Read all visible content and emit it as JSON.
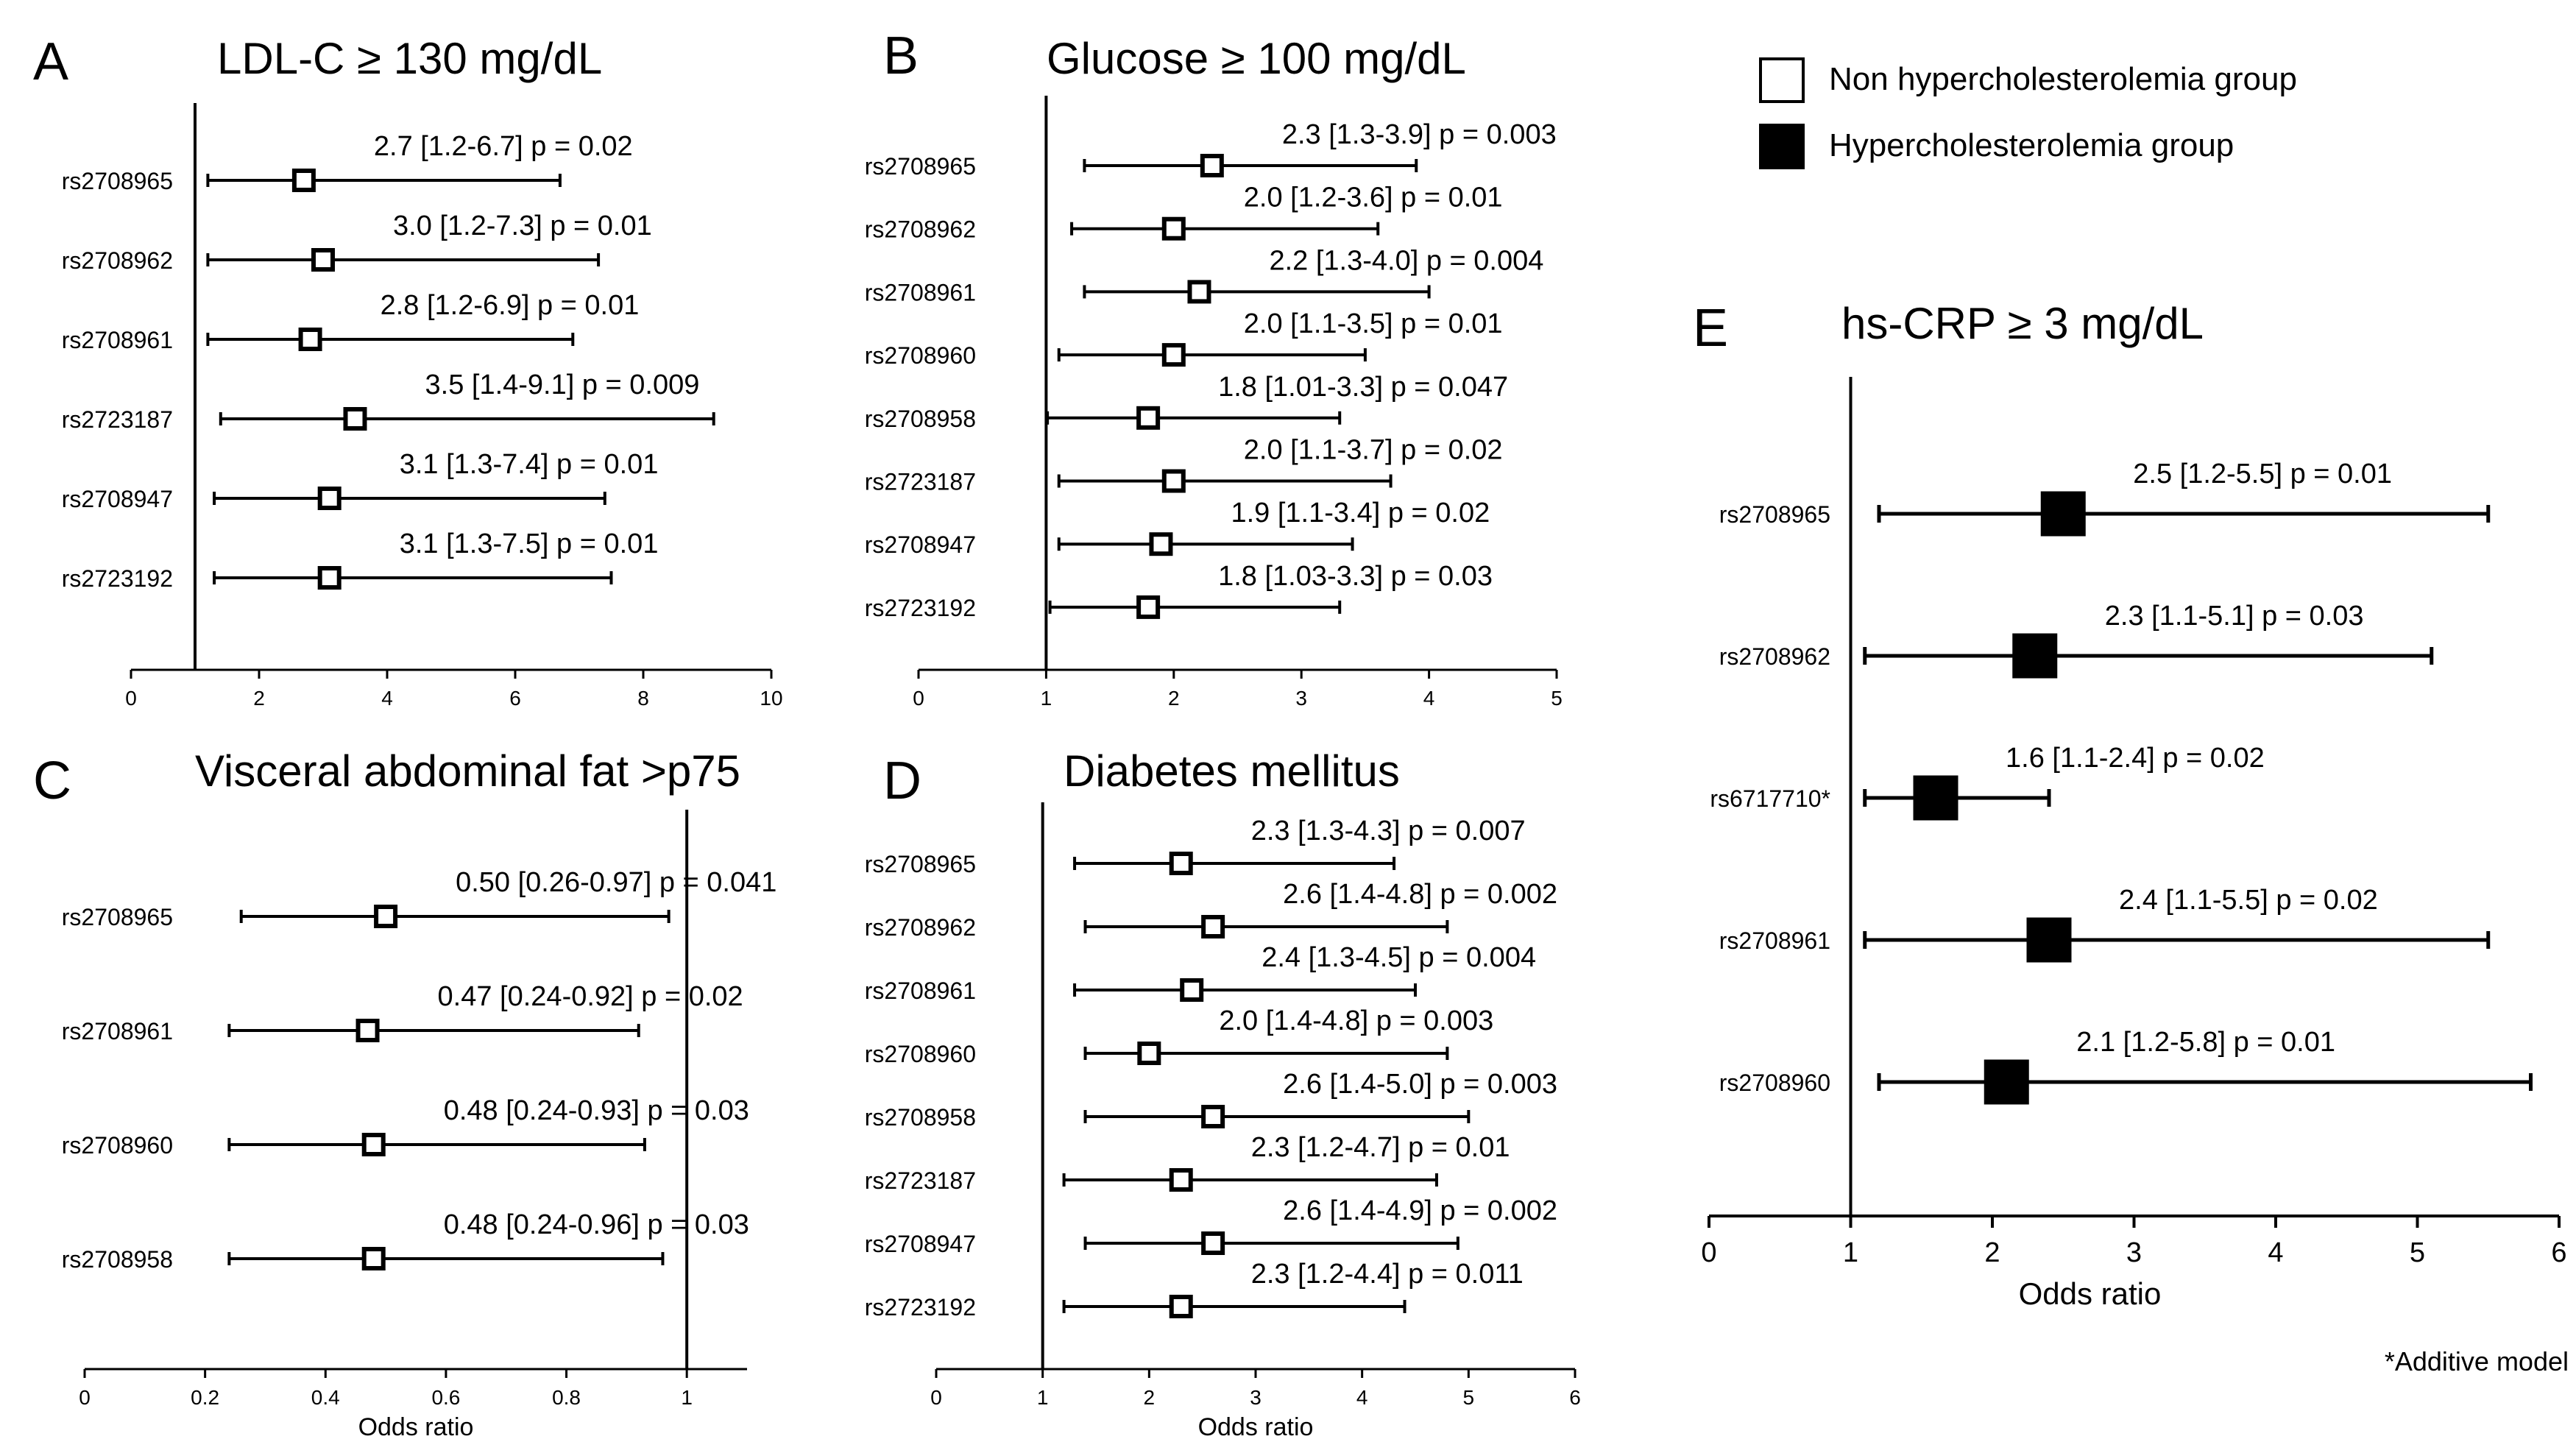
{
  "legend": {
    "open_label": "Non hypercholesterolemia group",
    "filled_label": "Hypercholesterolemia group"
  },
  "footnote": "*Additive model",
  "chart_data": [
    {
      "id": "A",
      "letter": "A",
      "type": "forest",
      "title": "LDL-C ≥ 130 mg/dL",
      "xlabel": "",
      "xlim": [
        0,
        10
      ],
      "ticks": [
        0,
        2,
        4,
        6,
        8,
        10
      ],
      "ref": 1,
      "marker": "open",
      "rows": [
        {
          "label": "rs2708965",
          "or": 2.7,
          "lo": 1.2,
          "hi": 6.7,
          "text": "2.7 [1.2-6.7] p = 0.02"
        },
        {
          "label": "rs2708962",
          "or": 3.0,
          "lo": 1.2,
          "hi": 7.3,
          "text": "3.0 [1.2-7.3] p = 0.01"
        },
        {
          "label": "rs2708961",
          "or": 2.8,
          "lo": 1.2,
          "hi": 6.9,
          "text": "2.8 [1.2-6.9] p = 0.01"
        },
        {
          "label": "rs2723187",
          "or": 3.5,
          "lo": 1.4,
          "hi": 9.1,
          "text": "3.5 [1.4-9.1] p = 0.009"
        },
        {
          "label": "rs2708947",
          "or": 3.1,
          "lo": 1.3,
          "hi": 7.4,
          "text": "3.1 [1.3-7.4] p = 0.01"
        },
        {
          "label": "rs2723192",
          "or": 3.1,
          "lo": 1.3,
          "hi": 7.5,
          "text": "3.1 [1.3-7.5] p = 0.01"
        }
      ]
    },
    {
      "id": "B",
      "letter": "B",
      "type": "forest",
      "title": "Glucose ≥ 100 mg/dL",
      "xlabel": "",
      "xlim": [
        0,
        5
      ],
      "ticks": [
        0,
        1,
        2,
        3,
        4,
        5
      ],
      "ref": 1,
      "marker": "open",
      "rows": [
        {
          "label": "rs2708965",
          "or": 2.3,
          "lo": 1.3,
          "hi": 3.9,
          "text": "2.3 [1.3-3.9] p = 0.003"
        },
        {
          "label": "rs2708962",
          "or": 2.0,
          "lo": 1.2,
          "hi": 3.6,
          "text": "2.0 [1.2-3.6] p = 0.01"
        },
        {
          "label": "rs2708961",
          "or": 2.2,
          "lo": 1.3,
          "hi": 4.0,
          "text": "2.2 [1.3-4.0] p = 0.004"
        },
        {
          "label": "rs2708960",
          "or": 2.0,
          "lo": 1.1,
          "hi": 3.5,
          "text": "2.0 [1.1-3.5] p = 0.01"
        },
        {
          "label": "rs2708958",
          "or": 1.8,
          "lo": 1.01,
          "hi": 3.3,
          "text": "1.8 [1.01-3.3] p = 0.047"
        },
        {
          "label": "rs2723187",
          "or": 2.0,
          "lo": 1.1,
          "hi": 3.7,
          "text": "2.0 [1.1-3.7] p = 0.02"
        },
        {
          "label": "rs2708947",
          "or": 1.9,
          "lo": 1.1,
          "hi": 3.4,
          "text": "1.9 [1.1-3.4] p = 0.02"
        },
        {
          "label": "rs2723192",
          "or": 1.8,
          "lo": 1.03,
          "hi": 3.3,
          "text": "1.8 [1.03-3.3] p = 0.03"
        }
      ]
    },
    {
      "id": "C",
      "letter": "C",
      "type": "forest",
      "title": "Visceral abdominal fat >p75",
      "xlabel": "Odds ratio",
      "xlim": [
        0,
        1.1
      ],
      "ticks": [
        0,
        0.2,
        0.4,
        0.6,
        0.8,
        1
      ],
      "ref": 1,
      "marker": "open",
      "rows": [
        {
          "label": "rs2708965",
          "or": 0.5,
          "lo": 0.26,
          "hi": 0.97,
          "text": "0.50 [0.26-0.97] p = 0.041"
        },
        {
          "label": "rs2708961",
          "or": 0.47,
          "lo": 0.24,
          "hi": 0.92,
          "text": "0.47 [0.24-0.92] p = 0.02"
        },
        {
          "label": "rs2708960",
          "or": 0.48,
          "lo": 0.24,
          "hi": 0.93,
          "text": "0.48 [0.24-0.93] p = 0.03"
        },
        {
          "label": "rs2708958",
          "or": 0.48,
          "lo": 0.24,
          "hi": 0.96,
          "text": "0.48 [0.24-0.96] p = 0.03"
        }
      ]
    },
    {
      "id": "D",
      "letter": "D",
      "type": "forest",
      "title": "Diabetes mellitus",
      "xlabel": "Odds ratio",
      "xlim": [
        0,
        6
      ],
      "ticks": [
        0,
        1,
        2,
        3,
        4,
        5,
        6
      ],
      "ref": 1,
      "marker": "open",
      "rows": [
        {
          "label": "rs2708965",
          "or": 2.3,
          "lo": 1.3,
          "hi": 4.3,
          "text": "2.3 [1.3-4.3] p = 0.007"
        },
        {
          "label": "rs2708962",
          "or": 2.6,
          "lo": 1.4,
          "hi": 4.8,
          "text": "2.6 [1.4-4.8] p = 0.002"
        },
        {
          "label": "rs2708961",
          "or": 2.4,
          "lo": 1.3,
          "hi": 4.5,
          "text": "2.4 [1.3-4.5] p = 0.004"
        },
        {
          "label": "rs2708960",
          "or": 2.0,
          "lo": 1.4,
          "hi": 4.8,
          "text": "2.0 [1.4-4.8] p = 0.003"
        },
        {
          "label": "rs2708958",
          "or": 2.6,
          "lo": 1.4,
          "hi": 5.0,
          "text": "2.6 [1.4-5.0] p = 0.003"
        },
        {
          "label": "rs2723187",
          "or": 2.3,
          "lo": 1.2,
          "hi": 4.7,
          "text": "2.3 [1.2-4.7] p = 0.01"
        },
        {
          "label": "rs2708947",
          "or": 2.6,
          "lo": 1.4,
          "hi": 4.9,
          "text": "2.6 [1.4-4.9] p = 0.002"
        },
        {
          "label": "rs2723192",
          "or": 2.3,
          "lo": 1.2,
          "hi": 4.4,
          "text": "2.3 [1.2-4.4] p = 0.011"
        }
      ]
    },
    {
      "id": "E",
      "letter": "E",
      "type": "forest",
      "title": "hs-CRP ≥ 3 mg/dL",
      "xlabel": "Odds ratio",
      "xlim": [
        0,
        6
      ],
      "ticks": [
        0,
        1,
        2,
        3,
        4,
        5,
        6
      ],
      "ref": 1,
      "marker": "filled",
      "rows": [
        {
          "label": "rs2708965",
          "or": 2.5,
          "lo": 1.2,
          "hi": 5.5,
          "text": "2.5 [1.2-5.5] p = 0.01"
        },
        {
          "label": "rs2708962",
          "or": 2.3,
          "lo": 1.1,
          "hi": 5.1,
          "text": "2.3 [1.1-5.1] p = 0.03"
        },
        {
          "label": "rs6717710*",
          "or": 1.6,
          "lo": 1.1,
          "hi": 2.4,
          "text": "1.6 [1.1-2.4] p = 0.02"
        },
        {
          "label": "rs2708961",
          "or": 2.4,
          "lo": 1.1,
          "hi": 5.5,
          "text": "2.4 [1.1-5.5] p = 0.02"
        },
        {
          "label": "rs2708960",
          "or": 2.1,
          "lo": 1.2,
          "hi": 5.8,
          "text": "2.1 [1.2-5.8] p = 0.01"
        }
      ]
    }
  ]
}
